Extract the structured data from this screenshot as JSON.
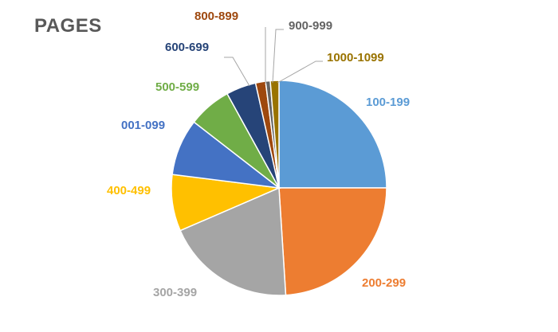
{
  "chart_data": {
    "type": "pie",
    "title": "PAGES",
    "slices": [
      {
        "label": "100-199",
        "value": 25.0,
        "color": "#5B9BD5"
      },
      {
        "label": "200-299",
        "value": 24.0,
        "color": "#ED7D31"
      },
      {
        "label": "300-399",
        "value": 19.5,
        "color": "#A5A5A5"
      },
      {
        "label": "400-499",
        "value": 8.5,
        "color": "#FFC000"
      },
      {
        "label": "001-099",
        "value": 8.5,
        "color": "#4472C4"
      },
      {
        "label": "500-599",
        "value": 6.5,
        "color": "#70AD47"
      },
      {
        "label": "600-699",
        "value": 4.5,
        "color": "#264478"
      },
      {
        "label": "800-899",
        "value": 1.5,
        "color": "#9E480E"
      },
      {
        "label": "900-999",
        "value": 0.7,
        "color": "#636363"
      },
      {
        "label": "1000-1099",
        "value": 1.3,
        "color": "#997300"
      }
    ],
    "start_angle_deg": 0,
    "direction": "clockwise",
    "legend": "none",
    "data_labels": "category names outside slices"
  }
}
